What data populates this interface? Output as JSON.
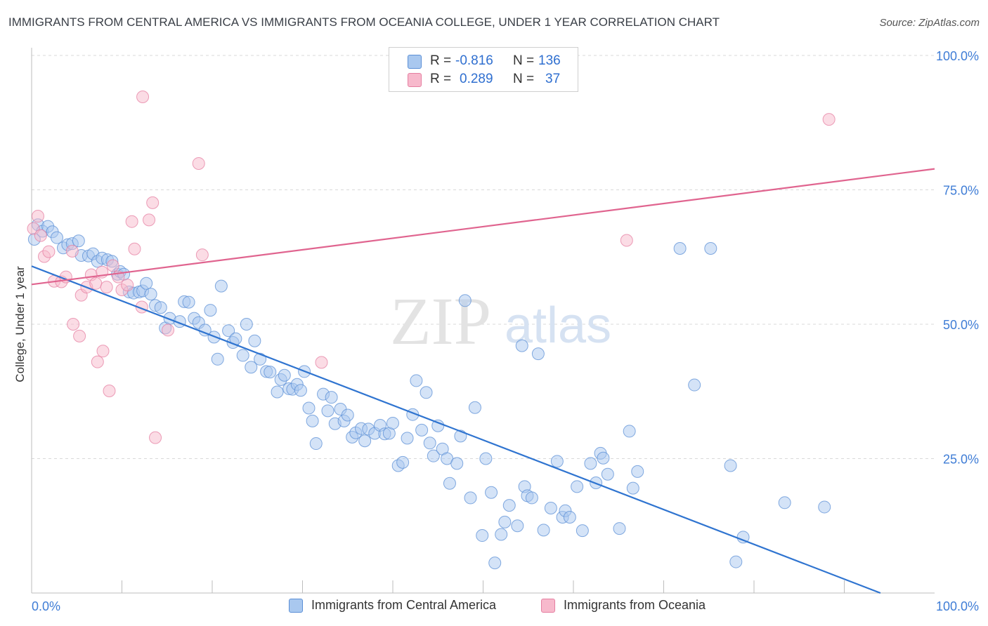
{
  "title": "IMMIGRANTS FROM CENTRAL AMERICA VS IMMIGRANTS FROM OCEANIA COLLEGE, UNDER 1 YEAR CORRELATION CHART",
  "source": "Source: ZipAtlas.com",
  "watermark": {
    "zip": "ZIP",
    "atlas": "atlas"
  },
  "legend": {
    "rows": [
      {
        "r_label": "R =",
        "r_value": "-0.816",
        "n_label": "N =",
        "n_value": "136",
        "color": "#a9c8ef",
        "edge": "#5b8fd6"
      },
      {
        "r_label": "R =",
        "r_value": "0.289",
        "n_label": "N =",
        "n_value": "37",
        "color": "#f7b9cc",
        "edge": "#e57fa1"
      }
    ]
  },
  "bottom_legend": [
    {
      "label": "Immigrants from Central America",
      "color": "#a9c8ef",
      "edge": "#5b8fd6"
    },
    {
      "label": "Immigrants from Oceania",
      "color": "#f7b9cc",
      "edge": "#e57fa1"
    }
  ],
  "chart_data": {
    "type": "scatter",
    "title": "IMMIGRANTS FROM CENTRAL AMERICA VS IMMIGRANTS FROM OCEANIA COLLEGE, UNDER 1 YEAR CORRELATION CHART",
    "xlabel": "",
    "ylabel": "College, Under 1 year",
    "xlim": [
      0,
      100
    ],
    "ylim": [
      0,
      100
    ],
    "x_tick_labels": [
      "0.0%",
      "100.0%"
    ],
    "y_tick_labels": [
      "25.0%",
      "50.0%",
      "75.0%",
      "100.0%"
    ],
    "y_ticks": [
      25,
      50,
      75,
      100
    ],
    "grid": true,
    "legend_position": "top-center",
    "series": [
      {
        "name": "Immigrants from Central America",
        "color": "#5b8fd6",
        "fill": "#a9c8ef",
        "trend": {
          "x": [
            0,
            94
          ],
          "y": [
            60.8,
            0
          ]
        },
        "points": [
          [
            0.3,
            65.8
          ],
          [
            0.7,
            68.5
          ],
          [
            1.2,
            67.3
          ],
          [
            1.8,
            68.2
          ],
          [
            2.3,
            67.2
          ],
          [
            2.8,
            66.1
          ],
          [
            3.5,
            64.2
          ],
          [
            4.0,
            64.8
          ],
          [
            4.5,
            65.0
          ],
          [
            5.2,
            65.5
          ],
          [
            5.5,
            62.8
          ],
          [
            6.3,
            62.7
          ],
          [
            6.8,
            63.1
          ],
          [
            7.3,
            61.7
          ],
          [
            7.8,
            62.3
          ],
          [
            8.4,
            62.0
          ],
          [
            8.9,
            61.7
          ],
          [
            9.5,
            59.3
          ],
          [
            9.8,
            59.8
          ],
          [
            10.2,
            59.3
          ],
          [
            10.8,
            56.0
          ],
          [
            11.3,
            55.8
          ],
          [
            11.9,
            56.0
          ],
          [
            12.3,
            56.2
          ],
          [
            12.7,
            57.6
          ],
          [
            13.2,
            55.6
          ],
          [
            13.7,
            53.5
          ],
          [
            14.3,
            53.1
          ],
          [
            14.8,
            49.3
          ],
          [
            15.3,
            51.1
          ],
          [
            16.4,
            50.5
          ],
          [
            16.9,
            54.2
          ],
          [
            17.4,
            54.1
          ],
          [
            18.0,
            51.1
          ],
          [
            18.5,
            50.3
          ],
          [
            19.2,
            48.9
          ],
          [
            19.8,
            52.6
          ],
          [
            20.2,
            47.6
          ],
          [
            20.6,
            43.5
          ],
          [
            21.0,
            57.1
          ],
          [
            21.8,
            48.8
          ],
          [
            22.3,
            46.6
          ],
          [
            22.6,
            47.3
          ],
          [
            23.4,
            44.2
          ],
          [
            23.8,
            50.0
          ],
          [
            24.3,
            42.0
          ],
          [
            24.7,
            46.9
          ],
          [
            25.3,
            43.5
          ],
          [
            26.0,
            41.2
          ],
          [
            26.4,
            41.1
          ],
          [
            27.2,
            37.4
          ],
          [
            27.6,
            39.7
          ],
          [
            28.0,
            40.5
          ],
          [
            28.5,
            38.0
          ],
          [
            28.9,
            37.9
          ],
          [
            29.4,
            38.8
          ],
          [
            29.8,
            37.7
          ],
          [
            30.2,
            41.2
          ],
          [
            30.7,
            34.4
          ],
          [
            31.1,
            32.0
          ],
          [
            31.5,
            27.8
          ],
          [
            32.3,
            37.0
          ],
          [
            32.8,
            33.9
          ],
          [
            33.2,
            36.4
          ],
          [
            33.6,
            31.5
          ],
          [
            34.2,
            34.2
          ],
          [
            34.6,
            32.0
          ],
          [
            35.0,
            33.1
          ],
          [
            35.5,
            29.0
          ],
          [
            35.9,
            29.8
          ],
          [
            36.5,
            30.6
          ],
          [
            36.9,
            28.3
          ],
          [
            37.3,
            30.5
          ],
          [
            38.0,
            29.7
          ],
          [
            38.6,
            31.2
          ],
          [
            39.1,
            29.6
          ],
          [
            39.6,
            29.7
          ],
          [
            40.0,
            31.6
          ],
          [
            40.6,
            23.7
          ],
          [
            41.1,
            24.3
          ],
          [
            41.6,
            28.8
          ],
          [
            42.2,
            33.2
          ],
          [
            42.6,
            39.5
          ],
          [
            43.2,
            30.3
          ],
          [
            43.7,
            37.3
          ],
          [
            44.1,
            27.9
          ],
          [
            44.5,
            25.5
          ],
          [
            45.0,
            31.1
          ],
          [
            45.5,
            26.8
          ],
          [
            46.0,
            25.0
          ],
          [
            46.3,
            20.4
          ],
          [
            47.1,
            24.1
          ],
          [
            47.5,
            29.2
          ],
          [
            48.0,
            54.4
          ],
          [
            48.6,
            17.7
          ],
          [
            49.1,
            34.5
          ],
          [
            49.9,
            10.7
          ],
          [
            50.3,
            25.0
          ],
          [
            50.9,
            18.7
          ],
          [
            51.3,
            5.6
          ],
          [
            52.0,
            10.9
          ],
          [
            52.4,
            13.2
          ],
          [
            52.9,
            16.3
          ],
          [
            53.8,
            12.5
          ],
          [
            54.3,
            46.0
          ],
          [
            54.6,
            19.8
          ],
          [
            54.9,
            18.1
          ],
          [
            55.4,
            17.7
          ],
          [
            56.1,
            44.5
          ],
          [
            56.7,
            11.7
          ],
          [
            57.5,
            15.8
          ],
          [
            58.2,
            24.5
          ],
          [
            58.8,
            14.1
          ],
          [
            59.1,
            15.3
          ],
          [
            59.6,
            14.1
          ],
          [
            60.4,
            19.8
          ],
          [
            61.0,
            11.6
          ],
          [
            61.9,
            24.1
          ],
          [
            62.5,
            20.5
          ],
          [
            63.0,
            26.0
          ],
          [
            63.3,
            25.1
          ],
          [
            63.8,
            22.1
          ],
          [
            65.1,
            12.0
          ],
          [
            66.2,
            30.1
          ],
          [
            66.6,
            19.5
          ],
          [
            67.1,
            22.6
          ],
          [
            71.8,
            64.1
          ],
          [
            73.4,
            38.7
          ],
          [
            75.2,
            64.1
          ],
          [
            77.4,
            23.7
          ],
          [
            78.0,
            5.8
          ],
          [
            78.8,
            10.4
          ],
          [
            83.4,
            16.8
          ],
          [
            87.8,
            16.0
          ]
        ]
      },
      {
        "name": "Immigrants from Oceania",
        "color": "#e57fa1",
        "fill": "#f7b9cc",
        "trend": {
          "x": [
            0,
            100
          ],
          "y": [
            57.4,
            78.9
          ]
        },
        "points": [
          [
            0.2,
            67.8
          ],
          [
            0.7,
            70.1
          ],
          [
            1.0,
            66.5
          ],
          [
            1.4,
            62.6
          ],
          [
            1.9,
            63.5
          ],
          [
            2.5,
            58.0
          ],
          [
            3.3,
            57.9
          ],
          [
            3.8,
            58.8
          ],
          [
            4.5,
            63.6
          ],
          [
            4.6,
            50.0
          ],
          [
            5.3,
            47.8
          ],
          [
            5.5,
            55.4
          ],
          [
            6.1,
            56.9
          ],
          [
            6.6,
            59.2
          ],
          [
            7.1,
            57.6
          ],
          [
            7.3,
            43.0
          ],
          [
            7.8,
            59.7
          ],
          [
            7.9,
            45.0
          ],
          [
            8.3,
            56.9
          ],
          [
            8.6,
            37.6
          ],
          [
            9.0,
            60.9
          ],
          [
            9.6,
            58.8
          ],
          [
            10.0,
            56.4
          ],
          [
            10.6,
            57.3
          ],
          [
            11.1,
            69.1
          ],
          [
            11.4,
            64.0
          ],
          [
            12.2,
            53.2
          ],
          [
            12.3,
            92.3
          ],
          [
            13.0,
            69.4
          ],
          [
            13.4,
            72.6
          ],
          [
            13.7,
            28.9
          ],
          [
            15.1,
            48.9
          ],
          [
            18.5,
            79.9
          ],
          [
            18.9,
            62.9
          ],
          [
            32.1,
            42.9
          ],
          [
            65.9,
            65.6
          ],
          [
            88.3,
            88.1
          ]
        ]
      }
    ]
  }
}
